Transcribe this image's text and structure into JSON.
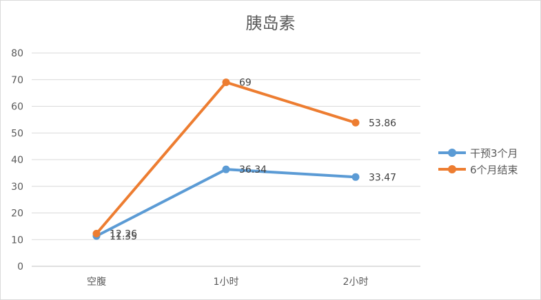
{
  "chart_data": {
    "type": "line",
    "title": "胰岛素",
    "xlabel": "",
    "ylabel": "",
    "categories": [
      "空腹",
      "1小时",
      "2小时"
    ],
    "ylim": [
      0,
      80
    ],
    "yticks": [
      0,
      10,
      20,
      30,
      40,
      50,
      60,
      70,
      80
    ],
    "grid": "horizontal",
    "legend_position": "right",
    "series": [
      {
        "name": "干预3个月",
        "values": [
          11.35,
          36.34,
          33.47
        ],
        "labels": [
          "11.35",
          "36.34",
          "33.47"
        ],
        "color": "#5b9bd5"
      },
      {
        "name": "6个月结束",
        "values": [
          12.26,
          69,
          53.86
        ],
        "labels": [
          "12.26",
          "69",
          "53.86"
        ],
        "color": "#ed7d31"
      }
    ]
  }
}
